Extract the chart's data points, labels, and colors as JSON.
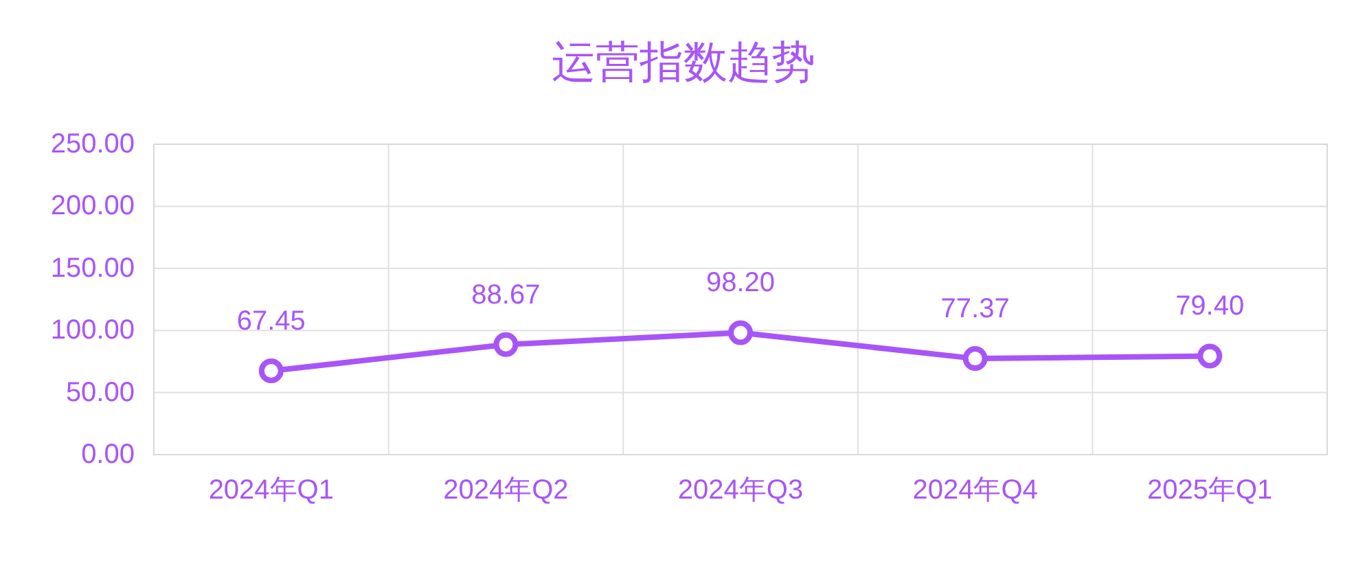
{
  "chart_data": {
    "type": "line",
    "title": "运营指数趋势",
    "categories": [
      "2024年Q1",
      "2024年Q2",
      "2024年Q3",
      "2024年Q4",
      "2025年Q1"
    ],
    "series": [
      {
        "color": "#a855f7",
        "values": [
          67.45,
          88.67,
          98.2,
          77.37,
          79.4
        ],
        "value_labels": [
          "67.45",
          "88.67",
          "98.20",
          "77.37",
          "79.40"
        ]
      }
    ],
    "ylim": [
      0,
      250
    ],
    "yticks": [
      {
        "value": 0,
        "label": "0.00"
      },
      {
        "value": 50,
        "label": "50.00"
      },
      {
        "value": 100,
        "label": "100.00"
      },
      {
        "value": 150,
        "label": "150.00"
      },
      {
        "value": 200,
        "label": "200.00"
      },
      {
        "value": 250,
        "label": "250.00"
      }
    ],
    "grid": true,
    "marker": "circle",
    "line_style": "solid"
  }
}
